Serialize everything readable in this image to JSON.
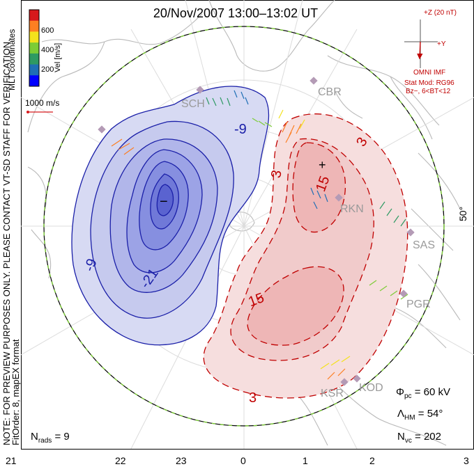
{
  "title": "20/Nov/2007  13:00–13:02  UT",
  "side_note": {
    "line1": "NOTE: FOR PREVIEW PURPOSES ONLY. PLEASE CONTACT VT-SD STAFF FOR VERIFICATION.",
    "line2": "FitOrder: 8, mapEX format",
    "coord_label": "MLT coordinates"
  },
  "velocity_scale": {
    "label": "Vel [m/s]",
    "ticks": [
      "600",
      "400",
      "200"
    ],
    "colors": [
      "#d7191c",
      "#fd7f22",
      "#f3e21c",
      "#7ccc36",
      "#2e9a63",
      "#1f6fb5",
      "#0000ff"
    ],
    "reference_vector": "1000 m/s"
  },
  "imf": {
    "z_label": "+Z (20 nT)",
    "y_label": "+Y",
    "source": "OMNI IMF",
    "model_line1": "Stat Mod: RG96",
    "model_line2": "Bz−, 6<BT<12"
  },
  "stations": [
    "CBR",
    "SCH",
    "RKN",
    "SAS",
    "PGR",
    "KOD",
    "KSR"
  ],
  "contours": {
    "negative_labels": [
      "-9",
      "-9",
      "-21"
    ],
    "positive_labels": [
      "3",
      "3",
      "15",
      "15",
      "3"
    ]
  },
  "markers": {
    "min": "−",
    "max": "+"
  },
  "latitude_label": "50°",
  "stats": {
    "phi_pc": "60 kV",
    "lambda_hm": "54°",
    "n_vc": "202",
    "n_rads": "9"
  },
  "mlt_ticks": [
    "21",
    "22",
    "23",
    "0",
    "1",
    "2",
    "3"
  ]
}
